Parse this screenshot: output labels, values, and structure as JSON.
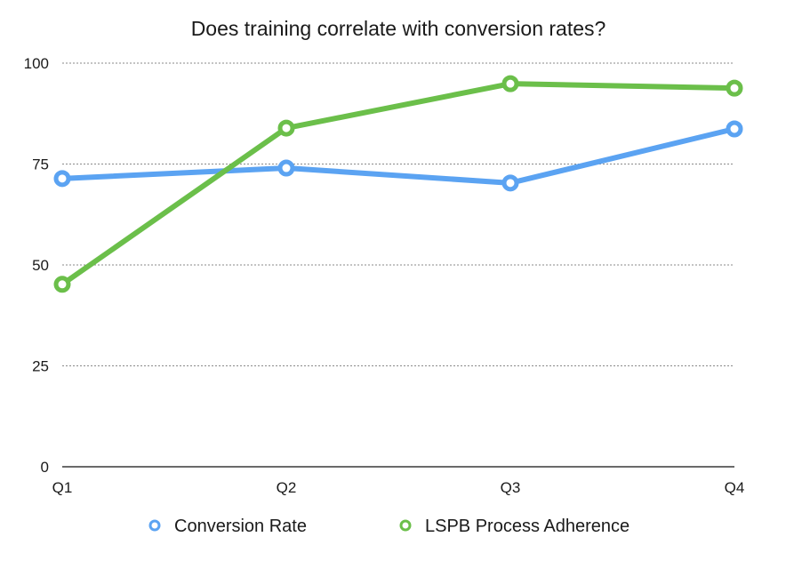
{
  "chart_data": {
    "type": "line",
    "title": "Does training correlate with conversion rates?",
    "xlabel": "",
    "ylabel": "",
    "categories": [
      "Q1",
      "Q2",
      "Q3",
      "Q4"
    ],
    "ylim": [
      0,
      100
    ],
    "yticks": [
      0,
      25,
      50,
      75,
      100
    ],
    "ytick_labels": [
      "0",
      "25",
      "50",
      "75",
      "100"
    ],
    "grid": true,
    "legend_position": "bottom",
    "series": [
      {
        "name": "Conversion Rate",
        "color": "#5ba3f2",
        "values": [
          71.4,
          74.0,
          70.3,
          83.7
        ]
      },
      {
        "name": "LSPB Process Adherence",
        "color": "#6bbf4a",
        "values": [
          45.2,
          83.9,
          94.9,
          93.8
        ]
      }
    ]
  }
}
